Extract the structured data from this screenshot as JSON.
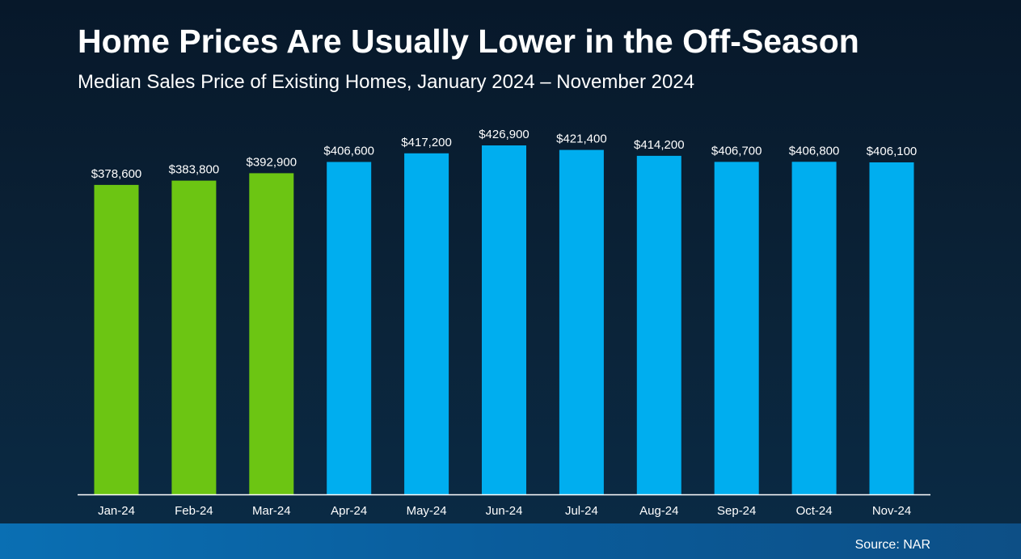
{
  "header": {
    "title": "Home Prices Are Usually Lower in the Off-Season",
    "subtitle": "Median Sales Price of Existing Homes, January 2024 – November 2024"
  },
  "footer": {
    "source": "Source: NAR"
  },
  "colors": {
    "off_season": "#6cc513",
    "season": "#00aeef",
    "axis": "#ffffff"
  },
  "chart_data": {
    "type": "bar",
    "categories": [
      "Jan-24",
      "Feb-24",
      "Mar-24",
      "Apr-24",
      "May-24",
      "Jun-24",
      "Jul-24",
      "Aug-24",
      "Sep-24",
      "Oct-24",
      "Nov-24"
    ],
    "values": [
      378600,
      383800,
      392900,
      406600,
      417200,
      426900,
      421400,
      414200,
      406700,
      406800,
      406100
    ],
    "labels": [
      "$378,600",
      "$383,800",
      "$392,900",
      "$406,600",
      "$417,200",
      "$426,900",
      "$421,400",
      "$414,200",
      "$406,700",
      "$406,800",
      "$406,100"
    ],
    "bar_groups": [
      "off_season",
      "off_season",
      "off_season",
      "season",
      "season",
      "season",
      "season",
      "season",
      "season",
      "season",
      "season"
    ],
    "ylim": [
      0,
      430000
    ],
    "grid": false,
    "legend": "none"
  }
}
